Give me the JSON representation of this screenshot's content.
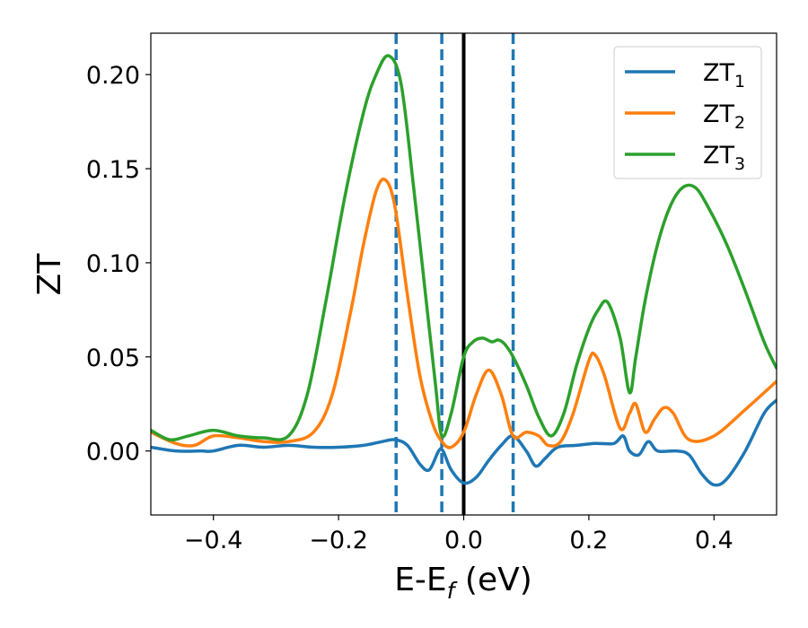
{
  "chart_data": {
    "type": "line",
    "xlabel": "E-E",
    "xlabel_sub": "f",
    "xlabel_unit": " (eV)",
    "ylabel": "ZT",
    "xlim": [
      -0.5,
      0.5
    ],
    "ylim": [
      -0.034,
      0.222
    ],
    "grid": false,
    "legend_placement": "top-right",
    "xticks": [
      -0.4,
      -0.2,
      0.0,
      0.2,
      0.4
    ],
    "xtick_labels": [
      "−0.4",
      "−0.2",
      "0.0",
      "0.2",
      "0.4"
    ],
    "yticks": [
      0.0,
      0.05,
      0.1,
      0.15,
      0.2
    ],
    "ytick_labels": [
      "0.00",
      "0.05",
      "0.10",
      "0.15",
      "0.20"
    ],
    "vertical_lines": [
      {
        "x": -0.108,
        "style": "dashed",
        "color": "#1f77b4"
      },
      {
        "x": -0.035,
        "style": "dashed",
        "color": "#1f77b4"
      },
      {
        "x": 0.0,
        "style": "solid",
        "color": "#000000"
      },
      {
        "x": 0.079,
        "style": "dashed",
        "color": "#1f77b4"
      }
    ],
    "series": [
      {
        "name": "ZT",
        "name_sub": "1",
        "color": "#1f77b4",
        "x": [
          -0.5,
          -0.46,
          -0.42,
          -0.4,
          -0.36,
          -0.32,
          -0.28,
          -0.24,
          -0.2,
          -0.16,
          -0.13,
          -0.11,
          -0.09,
          -0.07,
          -0.055,
          -0.04,
          -0.033,
          -0.02,
          0.0,
          0.02,
          0.04,
          0.06,
          0.079,
          0.1,
          0.115,
          0.13,
          0.15,
          0.18,
          0.21,
          0.24,
          0.255,
          0.265,
          0.28,
          0.295,
          0.31,
          0.34,
          0.36,
          0.38,
          0.4,
          0.42,
          0.45,
          0.48,
          0.5
        ],
        "y": [
          0.002,
          0.0,
          0.0,
          0.0,
          0.003,
          0.002,
          0.003,
          0.002,
          0.002,
          0.003,
          0.005,
          0.006,
          0.003,
          -0.007,
          -0.01,
          0.0,
          0.0,
          -0.01,
          -0.017,
          -0.014,
          -0.005,
          0.003,
          0.008,
          0.0,
          -0.008,
          -0.004,
          0.002,
          0.003,
          0.004,
          0.004,
          0.008,
          0.0,
          -0.002,
          0.005,
          0.0,
          0.0,
          -0.002,
          -0.012,
          -0.018,
          -0.015,
          0.0,
          0.02,
          0.027
        ]
      },
      {
        "name": "ZT",
        "name_sub": "2",
        "color": "#ff7f0e",
        "x": [
          -0.5,
          -0.46,
          -0.43,
          -0.4,
          -0.36,
          -0.32,
          -0.28,
          -0.24,
          -0.21,
          -0.18,
          -0.16,
          -0.14,
          -0.125,
          -0.11,
          -0.09,
          -0.07,
          -0.05,
          -0.035,
          -0.02,
          0.0,
          0.02,
          0.04,
          0.06,
          0.079,
          0.1,
          0.12,
          0.135,
          0.155,
          0.175,
          0.2,
          0.21,
          0.225,
          0.25,
          0.265,
          0.275,
          0.29,
          0.305,
          0.32,
          0.335,
          0.36,
          0.4,
          0.45,
          0.5
        ],
        "y": [
          0.01,
          0.004,
          0.003,
          0.008,
          0.007,
          0.005,
          0.005,
          0.01,
          0.03,
          0.075,
          0.11,
          0.138,
          0.144,
          0.13,
          0.083,
          0.04,
          0.015,
          0.005,
          0.002,
          0.01,
          0.03,
          0.043,
          0.03,
          0.008,
          0.01,
          0.008,
          0.003,
          0.005,
          0.02,
          0.048,
          0.051,
          0.04,
          0.012,
          0.02,
          0.025,
          0.01,
          0.017,
          0.023,
          0.02,
          0.006,
          0.008,
          0.022,
          0.037
        ]
      },
      {
        "name": "ZT",
        "name_sub": "3",
        "color": "#2ca02c",
        "x": [
          -0.5,
          -0.47,
          -0.44,
          -0.4,
          -0.36,
          -0.32,
          -0.28,
          -0.25,
          -0.22,
          -0.19,
          -0.16,
          -0.14,
          -0.12,
          -0.1,
          -0.08,
          -0.06,
          -0.045,
          -0.035,
          -0.02,
          0.0,
          0.015,
          0.03,
          0.045,
          0.055,
          0.065,
          0.079,
          0.1,
          0.12,
          0.14,
          0.16,
          0.18,
          0.2,
          0.215,
          0.23,
          0.25,
          0.265,
          0.275,
          0.29,
          0.31,
          0.33,
          0.35,
          0.37,
          0.39,
          0.42,
          0.45,
          0.48,
          0.5
        ],
        "y": [
          0.011,
          0.006,
          0.008,
          0.011,
          0.008,
          0.007,
          0.008,
          0.03,
          0.08,
          0.135,
          0.18,
          0.2,
          0.21,
          0.195,
          0.14,
          0.08,
          0.035,
          0.008,
          0.02,
          0.05,
          0.058,
          0.06,
          0.058,
          0.059,
          0.057,
          0.05,
          0.035,
          0.018,
          0.008,
          0.02,
          0.045,
          0.065,
          0.075,
          0.079,
          0.06,
          0.031,
          0.05,
          0.08,
          0.11,
          0.13,
          0.14,
          0.14,
          0.13,
          0.11,
          0.085,
          0.058,
          0.044
        ]
      }
    ]
  }
}
